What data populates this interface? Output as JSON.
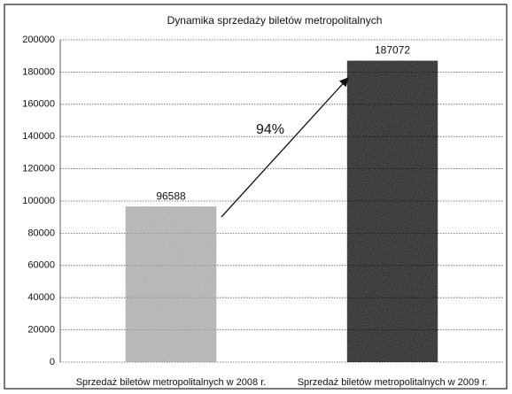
{
  "chart_data": {
    "type": "bar",
    "title": "Dynamika sprzedaży biletów metropolitalnych",
    "categories": [
      "Sprzedaż biletów metropolitalnych w 2008 r.",
      "Sprzedaż biletów metropolitalnych w 2009 r."
    ],
    "values": [
      96588,
      187072
    ],
    "colors": [
      "#c4c4c4",
      "#6f6f6f"
    ],
    "annotation": "94%",
    "ylim": [
      0,
      200000
    ],
    "yticks": [
      0,
      20000,
      40000,
      60000,
      80000,
      100000,
      120000,
      140000,
      160000,
      180000,
      200000
    ],
    "grid": true
  }
}
